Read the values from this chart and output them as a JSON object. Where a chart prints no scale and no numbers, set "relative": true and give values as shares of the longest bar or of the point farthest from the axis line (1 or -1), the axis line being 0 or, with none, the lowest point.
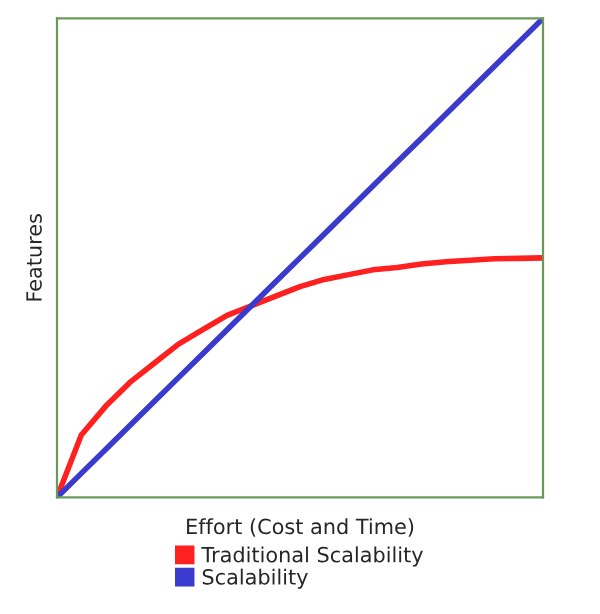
{
  "chart_data": {
    "type": "line",
    "relative": true,
    "xlabel": "Effort (Cost and Time)",
    "ylabel": "Features",
    "categories": [
      null,
      null,
      null,
      null,
      null,
      null,
      null,
      null,
      null,
      null,
      null,
      null,
      null,
      null,
      null,
      null,
      null,
      null,
      null,
      null,
      null
    ],
    "series": [
      {
        "name": "Traditional Scalability",
        "color": "#ff2020",
        "values": [
          0,
          0.13,
          0.19,
          0.24,
          0.28,
          0.32,
          0.35,
          0.38,
          0.4,
          0.42,
          0.44,
          0.455,
          0.465,
          0.475,
          0.48,
          0.487,
          0.492,
          0.495,
          0.498,
          0.499,
          0.5
        ]
      },
      {
        "name": "Scalability",
        "color": "#3a3acc",
        "values": [
          0,
          0.05,
          0.1,
          0.15,
          0.2,
          0.25,
          0.3,
          0.35,
          0.4,
          0.45,
          0.5,
          0.55,
          0.6,
          0.65,
          0.7,
          0.75,
          0.8,
          0.85,
          0.9,
          0.95,
          1
        ]
      }
    ],
    "legend": "bottom",
    "grid": false,
    "marker": "none",
    "line_style": "solid"
  }
}
